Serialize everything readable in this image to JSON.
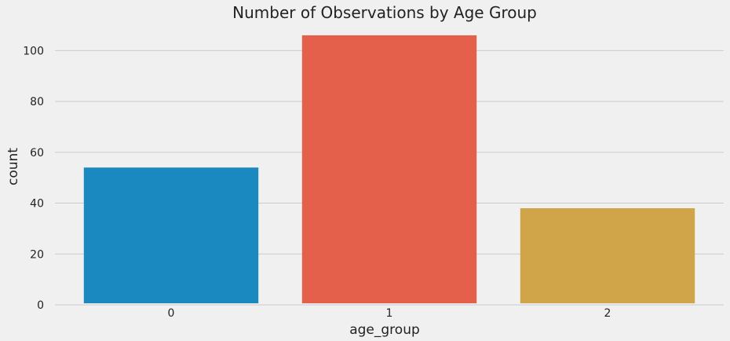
{
  "chart_data": {
    "type": "bar",
    "title": "Number of Observations by Age Group",
    "xlabel": "age_group",
    "ylabel": "count",
    "categories": [
      "0",
      "1",
      "2"
    ],
    "values": [
      54,
      106,
      38
    ],
    "ylim": [
      0,
      110
    ],
    "yticks": [
      0,
      20,
      40,
      60,
      80,
      100
    ],
    "grid": true,
    "bar_colors": [
      "#1a89bf",
      "#e5604a",
      "#d0a54a"
    ],
    "background_color": "#f0f0f0",
    "grid_color": "#cbcbcb"
  }
}
